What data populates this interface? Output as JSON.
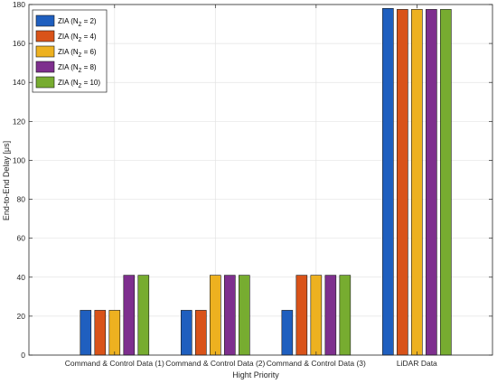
{
  "chart_data": {
    "type": "bar",
    "xlabel": "Hight Priority",
    "ylabel": "End-to-End Delay [μs]",
    "ylim": [
      0,
      180
    ],
    "yticks": [
      0,
      20,
      40,
      60,
      80,
      100,
      120,
      140,
      160,
      180
    ],
    "grid": true,
    "legend_position": "top-left",
    "categories": [
      "Command & Control Data (1)",
      "Command & Control Data (2)",
      "Command & Control Data (3)",
      "LiDAR Data"
    ],
    "series": [
      {
        "name": "ZIA (N_Z = 2)",
        "legend_prefix": "ZIA (N",
        "legend_sub": "Z",
        "legend_suffix": " = 2)",
        "color": "#1f5fbf",
        "values": [
          23,
          23,
          23,
          178
        ]
      },
      {
        "name": "ZIA (N_Z = 4)",
        "legend_prefix": "ZIA (N",
        "legend_sub": "Z",
        "legend_suffix": " = 4)",
        "color": "#d95319",
        "values": [
          23,
          23,
          41,
          177.5
        ]
      },
      {
        "name": "ZIA (N_Z = 6)",
        "legend_prefix": "ZIA (N",
        "legend_sub": "Z",
        "legend_suffix": " = 6)",
        "color": "#edb120",
        "values": [
          23,
          41,
          41,
          177.5
        ]
      },
      {
        "name": "ZIA (N_Z = 8)",
        "legend_prefix": "ZIA (N",
        "legend_sub": "Z",
        "legend_suffix": " = 8)",
        "color": "#7e2f8e",
        "values": [
          41,
          41,
          41,
          177.5
        ]
      },
      {
        "name": "ZIA (N_Z = 10)",
        "legend_prefix": "ZIA (N",
        "legend_sub": "Z",
        "legend_suffix": " = 10)",
        "color": "#77ac30",
        "values": [
          41,
          41,
          41,
          177.5
        ]
      }
    ]
  }
}
